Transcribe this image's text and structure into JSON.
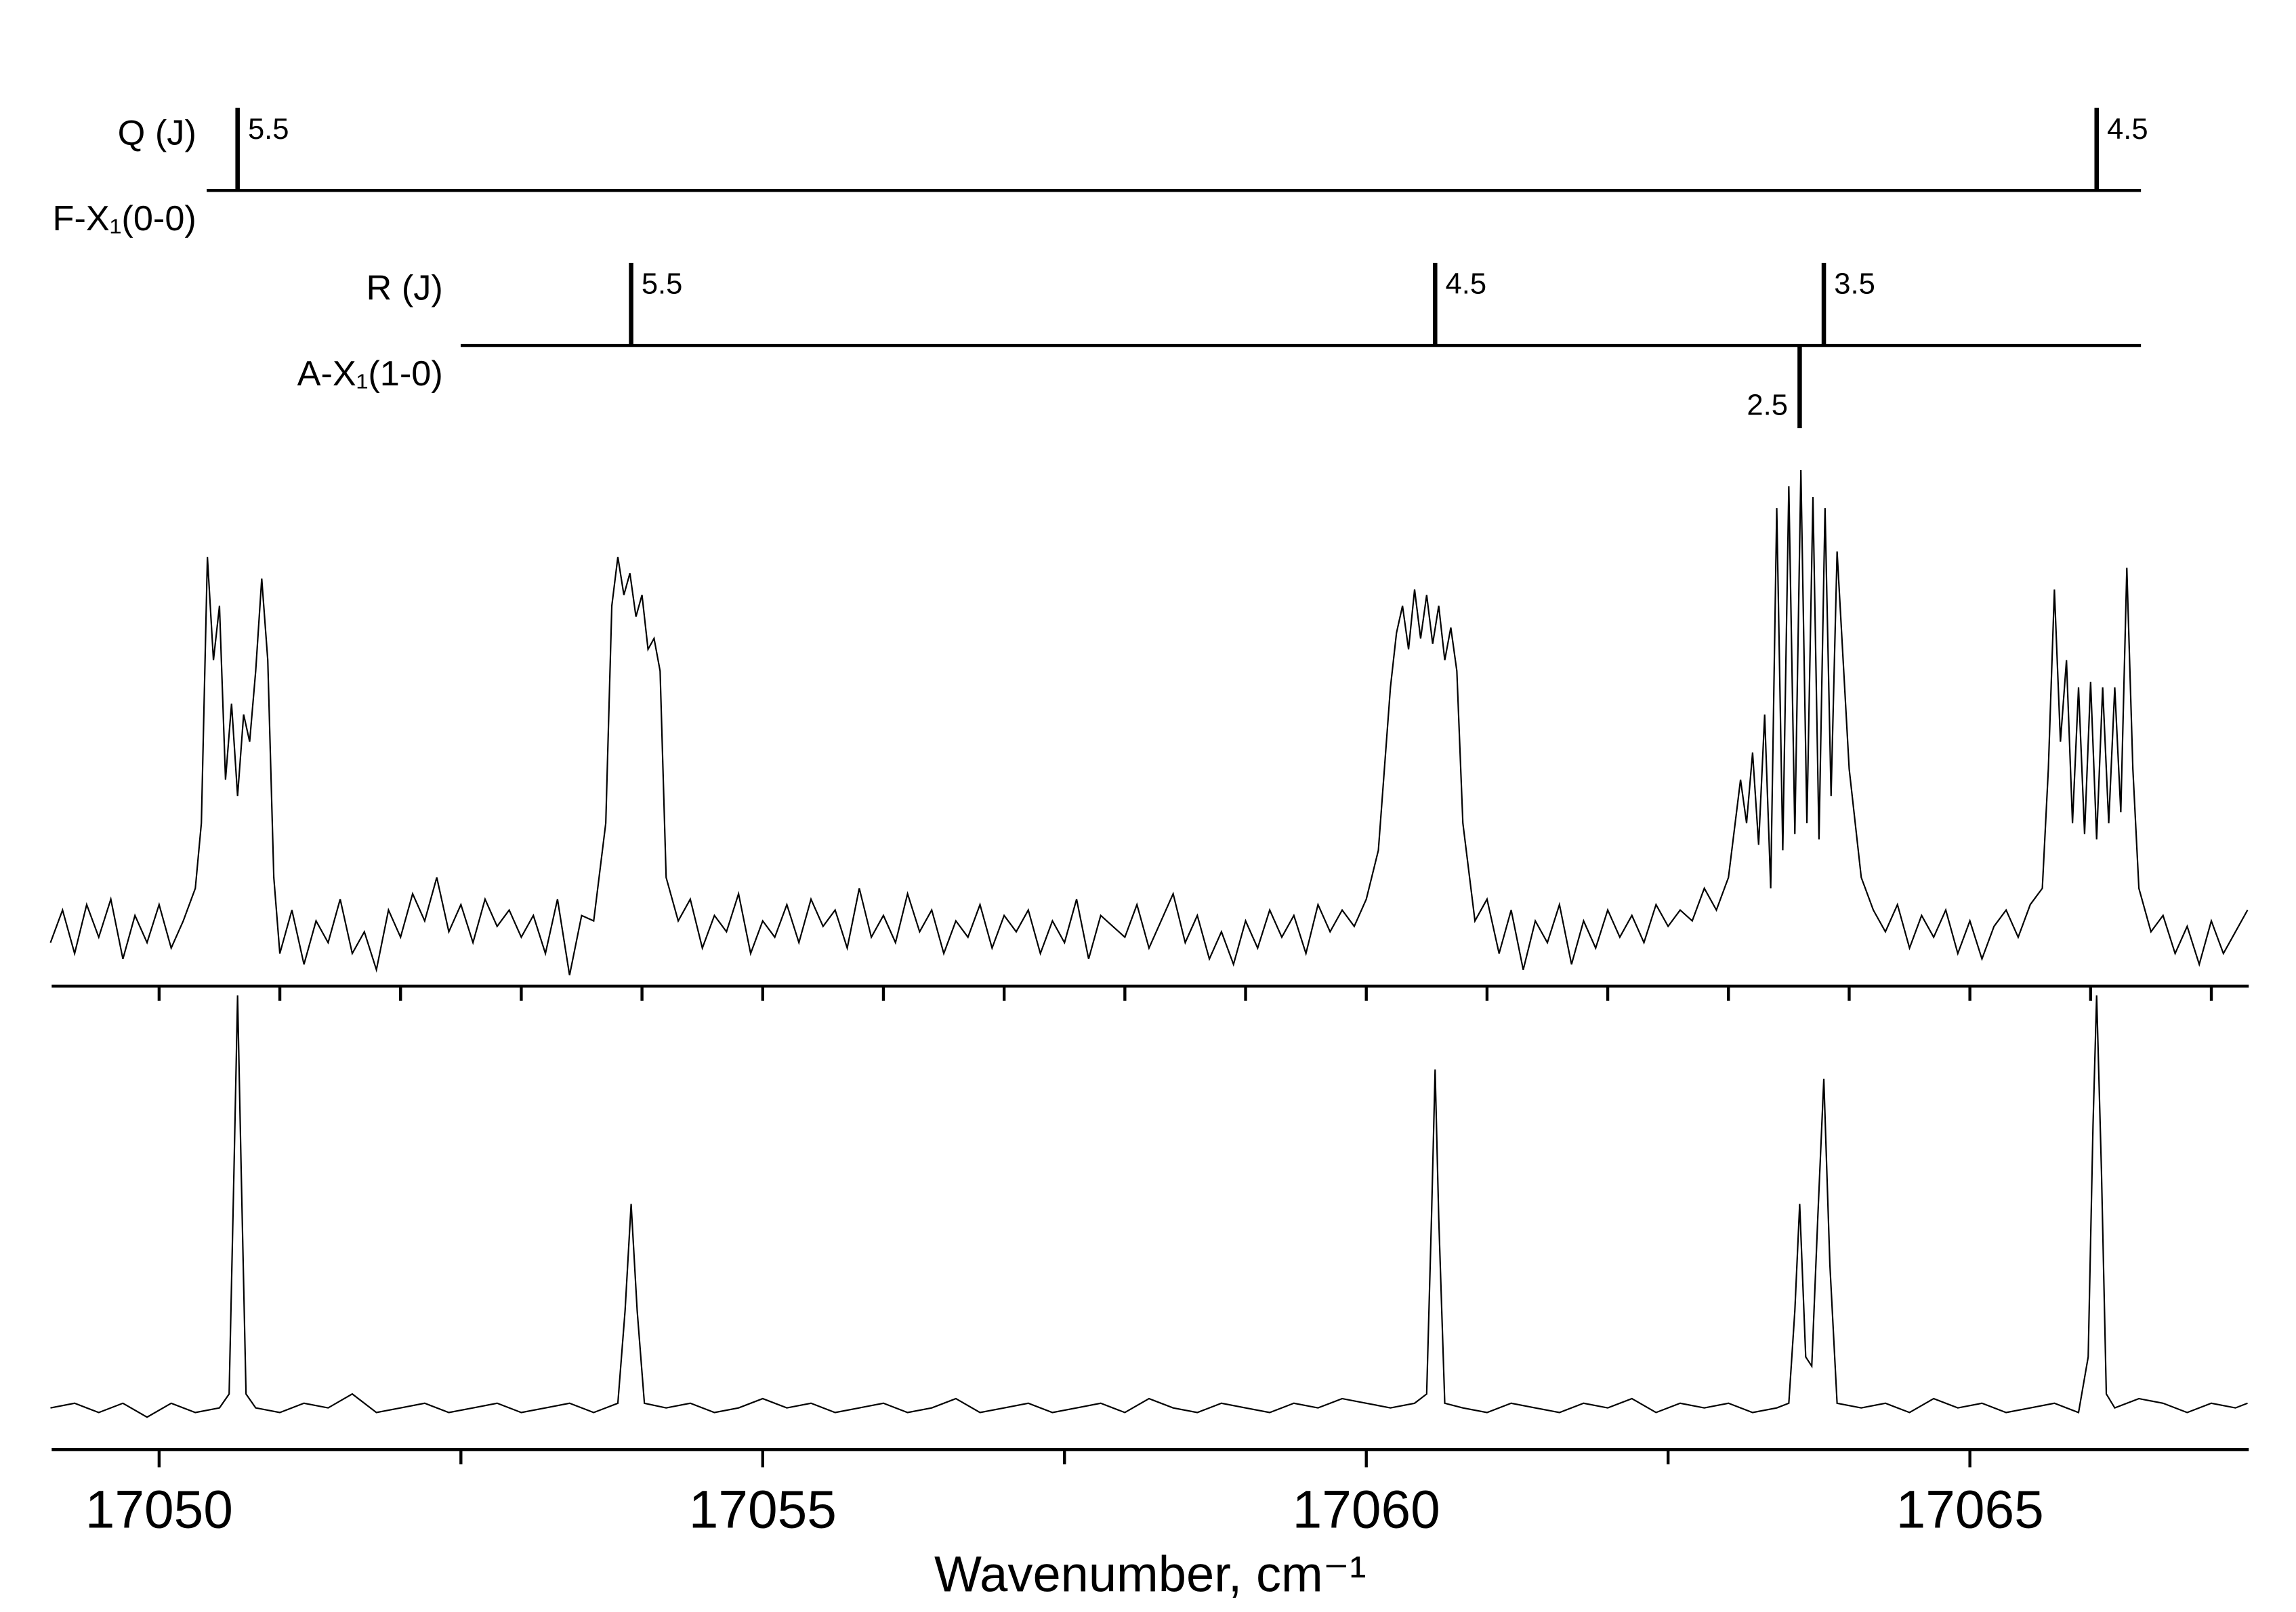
{
  "chart_data": [
    {
      "type": "line",
      "color": "#000000",
      "xlim": [
        17049.11,
        17067.31
      ],
      "ylim": [
        0,
        100
      ],
      "xminorticks": [
        17050,
        17051,
        17052,
        17053,
        17054,
        17055,
        17056,
        17057,
        17058,
        17059,
        17060,
        17061,
        17062,
        17063,
        17064,
        17065,
        17066,
        17067
      ],
      "annotations": [
        {
          "title": "Q (J)",
          "band": "F-X₁(0-0)",
          "lines": [
            {
              "x": 17050.65,
              "label": "5.5"
            },
            {
              "x": 17066.05,
              "label": "4.5"
            }
          ]
        },
        {
          "title": "R (J)",
          "band": "A-X₁(1-0)",
          "lines": [
            {
              "x": 17053.91,
              "label": "5.5"
            },
            {
              "x": 17060.57,
              "label": "4.5"
            },
            {
              "x": 17063.79,
              "label": "3.5"
            },
            {
              "x": 17063.59,
              "label": "2.5",
              "side": "below"
            }
          ]
        }
      ],
      "x": [
        17049.1,
        17049.2,
        17049.3,
        17049.4,
        17049.5,
        17049.6,
        17049.7,
        17049.8,
        17049.9,
        17050,
        17050.1,
        17050.2,
        17050.3,
        17050.35,
        17050.4,
        17050.45,
        17050.5,
        17050.55,
        17050.6,
        17050.65,
        17050.7,
        17050.75,
        17050.8,
        17050.85,
        17050.9,
        17050.95,
        17051,
        17051.1,
        17051.2,
        17051.3,
        17051.4,
        17051.5,
        17051.6,
        17051.7,
        17051.8,
        17051.9,
        17052,
        17052.1,
        17052.2,
        17052.3,
        17052.4,
        17052.5,
        17052.6,
        17052.7,
        17052.8,
        17052.9,
        17053,
        17053.1,
        17053.2,
        17053.3,
        17053.4,
        17053.5,
        17053.6,
        17053.7,
        17053.75,
        17053.8,
        17053.85,
        17053.9,
        17053.95,
        17054,
        17054.05,
        17054.1,
        17054.15,
        17054.2,
        17054.3,
        17054.4,
        17054.5,
        17054.6,
        17054.7,
        17054.8,
        17054.9,
        17055,
        17055.1,
        17055.2,
        17055.3,
        17055.4,
        17055.5,
        17055.6,
        17055.7,
        17055.8,
        17055.9,
        17056,
        17056.1,
        17056.2,
        17056.3,
        17056.4,
        17056.5,
        17056.6,
        17056.7,
        17056.8,
        17056.9,
        17057,
        17057.1,
        17057.2,
        17057.3,
        17057.4,
        17057.5,
        17057.6,
        17057.7,
        17057.8,
        17057.9,
        17058,
        17058.1,
        17058.2,
        17058.3,
        17058.4,
        17058.5,
        17058.6,
        17058.7,
        17058.8,
        17058.9,
        17059,
        17059.1,
        17059.2,
        17059.3,
        17059.4,
        17059.5,
        17059.6,
        17059.7,
        17059.8,
        17059.9,
        17060,
        17060.1,
        17060.2,
        17060.25,
        17060.3,
        17060.35,
        17060.4,
        17060.45,
        17060.5,
        17060.55,
        17060.6,
        17060.65,
        17060.7,
        17060.75,
        17060.8,
        17060.9,
        17061,
        17061.1,
        17061.2,
        17061.3,
        17061.4,
        17061.5,
        17061.6,
        17061.7,
        17061.8,
        17061.9,
        17062,
        17062.1,
        17062.2,
        17062.3,
        17062.4,
        17062.5,
        17062.6,
        17062.7,
        17062.8,
        17062.9,
        17063,
        17063.1,
        17063.15,
        17063.2,
        17063.25,
        17063.3,
        17063.35,
        17063.4,
        17063.45,
        17063.5,
        17063.55,
        17063.6,
        17063.65,
        17063.7,
        17063.75,
        17063.8,
        17063.85,
        17063.9,
        17064,
        17064.1,
        17064.2,
        17064.3,
        17064.4,
        17064.5,
        17064.6,
        17064.7,
        17064.8,
        17064.9,
        17065,
        17065.1,
        17065.2,
        17065.3,
        17065.4,
        17065.5,
        17065.6,
        17065.65,
        17065.7,
        17065.75,
        17065.8,
        17065.85,
        17065.9,
        17065.95,
        17066,
        17066.05,
        17066.1,
        17066.15,
        17066.2,
        17066.25,
        17066.3,
        17066.35,
        17066.4,
        17066.5,
        17066.6,
        17066.7,
        17066.8,
        17066.9,
        17067,
        17067.1,
        17067.2,
        17067.3
      ],
      "values": [
        8,
        14,
        6,
        15,
        9,
        16,
        5,
        13,
        8,
        15,
        7,
        12,
        18,
        30,
        79,
        60,
        70,
        38,
        52,
        35,
        50,
        45,
        58,
        75,
        60,
        20,
        6,
        14,
        4,
        12,
        8,
        16,
        6,
        10,
        3,
        14,
        9,
        17,
        12,
        20,
        10,
        15,
        8,
        16,
        11,
        14,
        9,
        13,
        6,
        16,
        2,
        13,
        12,
        30,
        70,
        79,
        72,
        76,
        68,
        72,
        62,
        64,
        58,
        20,
        12,
        16,
        7,
        13,
        10,
        17,
        6,
        12,
        9,
        15,
        8,
        16,
        11,
        14,
        7,
        18,
        9,
        13,
        8,
        17,
        10,
        14,
        6,
        12,
        9,
        15,
        7,
        13,
        10,
        14,
        6,
        12,
        8,
        16,
        5,
        13,
        11,
        9,
        15,
        7,
        12,
        17,
        8,
        13,
        5,
        10,
        4,
        12,
        7,
        14,
        9,
        13,
        6,
        15,
        10,
        14,
        11,
        16,
        25,
        55,
        65,
        70,
        62,
        73,
        64,
        72,
        63,
        70,
        60,
        66,
        58,
        30,
        12,
        16,
        6,
        14,
        3,
        12,
        8,
        15,
        4,
        12,
        7,
        14,
        9,
        13,
        8,
        15,
        11,
        14,
        12,
        18,
        14,
        20,
        38,
        30,
        43,
        26,
        50,
        18,
        88,
        25,
        92,
        28,
        95,
        30,
        90,
        27,
        88,
        35,
        80,
        40,
        20,
        14,
        10,
        15,
        7,
        13,
        9,
        14,
        6,
        12,
        5,
        11,
        14,
        9,
        15,
        18,
        40,
        73,
        45,
        60,
        30,
        55,
        28,
        56,
        27,
        55,
        30,
        55,
        32,
        77,
        40,
        18,
        10,
        13,
        6,
        11,
        4,
        12,
        6,
        10,
        14
      ]
    },
    {
      "type": "line",
      "color": "#000000",
      "xlim": [
        17049.11,
        17067.31
      ],
      "ylim": [
        0,
        100
      ],
      "xticks": [
        17050,
        17055,
        17060,
        17065
      ],
      "xminorticks": [
        17052.5,
        17057.5,
        17062.5
      ],
      "xlabel": "Wavenumber,  cm⁻¹",
      "x": [
        17049.1,
        17049.3,
        17049.5,
        17049.7,
        17049.9,
        17050.1,
        17050.3,
        17050.5,
        17050.58,
        17050.62,
        17050.65,
        17050.68,
        17050.72,
        17050.8,
        17051,
        17051.2,
        17051.4,
        17051.6,
        17051.8,
        17052,
        17052.2,
        17052.4,
        17052.6,
        17052.8,
        17053,
        17053.2,
        17053.4,
        17053.6,
        17053.8,
        17053.86,
        17053.91,
        17053.96,
        17054.02,
        17054.2,
        17054.4,
        17054.6,
        17054.8,
        17055,
        17055.2,
        17055.4,
        17055.6,
        17055.8,
        17056,
        17056.2,
        17056.4,
        17056.6,
        17056.8,
        17057,
        17057.2,
        17057.4,
        17057.6,
        17057.8,
        17058,
        17058.2,
        17058.4,
        17058.6,
        17058.8,
        17059,
        17059.2,
        17059.4,
        17059.6,
        17059.8,
        17060,
        17060.2,
        17060.4,
        17060.5,
        17060.54,
        17060.57,
        17060.6,
        17060.65,
        17060.8,
        17061,
        17061.2,
        17061.4,
        17061.6,
        17061.8,
        17062,
        17062.2,
        17062.4,
        17062.6,
        17062.8,
        17063,
        17063.2,
        17063.4,
        17063.5,
        17063.55,
        17063.59,
        17063.64,
        17063.69,
        17063.74,
        17063.79,
        17063.84,
        17063.9,
        17064.1,
        17064.3,
        17064.5,
        17064.7,
        17064.9,
        17065.1,
        17065.3,
        17065.5,
        17065.7,
        17065.9,
        17065.98,
        17066.02,
        17066.05,
        17066.09,
        17066.13,
        17066.2,
        17066.4,
        17066.6,
        17066.8,
        17067,
        17067.2,
        17067.3
      ],
      "values": [
        9,
        10,
        8,
        10,
        7,
        10,
        8,
        9,
        12,
        60,
        98,
        60,
        12,
        9,
        8,
        10,
        9,
        12,
        8,
        9,
        10,
        8,
        9,
        10,
        8,
        9,
        10,
        8,
        10,
        30,
        53,
        30,
        10,
        9,
        10,
        8,
        9,
        11,
        9,
        10,
        8,
        9,
        10,
        8,
        9,
        11,
        8,
        9,
        10,
        8,
        9,
        10,
        8,
        11,
        9,
        8,
        10,
        9,
        8,
        10,
        9,
        11,
        10,
        9,
        10,
        12,
        50,
        82,
        50,
        10,
        9,
        8,
        10,
        9,
        8,
        10,
        9,
        11,
        8,
        10,
        9,
        10,
        8,
        9,
        10,
        30,
        53,
        20,
        18,
        50,
        80,
        40,
        10,
        9,
        10,
        8,
        11,
        9,
        10,
        8,
        9,
        10,
        8,
        20,
        70,
        98,
        60,
        12,
        9,
        11,
        10,
        8,
        10,
        9,
        10
      ]
    }
  ]
}
